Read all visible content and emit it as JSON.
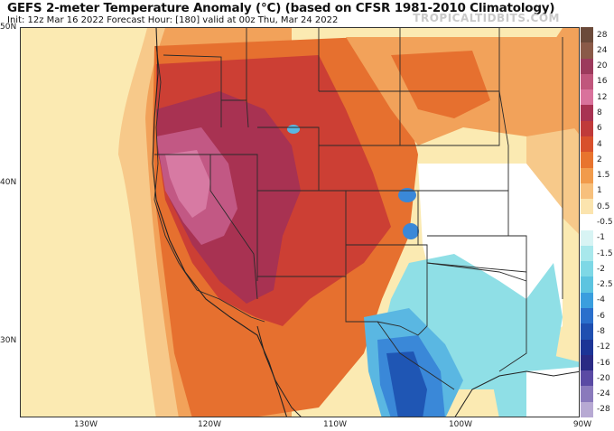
{
  "header": {
    "title": "GEFS 2-meter Temperature Anomaly (°C) (based on CFSR 1981-2010 Climatology)",
    "subtitle": "Init: 12z Mar 16 2022   Forecast Hour: [180]   valid at 00z Thu, Mar 24 2022",
    "brand": "TROPICALTIDBITS.COM"
  },
  "axes": {
    "lat_labels": [
      "50N",
      "40N",
      "30N"
    ],
    "lon_labels": [
      "130W",
      "120W",
      "110W",
      "100W",
      "90W"
    ]
  },
  "colorbar": {
    "labels": [
      "28",
      "24",
      "20",
      "16",
      "12",
      "8",
      "6",
      "4",
      "2",
      "1.5",
      "1",
      "0.5",
      "-0.5",
      "-1",
      "-1.5",
      "-2",
      "-2.5",
      "-4",
      "-6",
      "-8",
      "-12",
      "-16",
      "-20",
      "-24",
      "-28"
    ],
    "colors": [
      "#6b4a3a",
      "#8a5a48",
      "#9c3a5c",
      "#c0567c",
      "#d9729c",
      "#a83252",
      "#c03a3a",
      "#d8502c",
      "#e8742e",
      "#f19b4b",
      "#f7c07c",
      "#fbe4ae",
      "#ffffff",
      "#d8f4f4",
      "#a8e8ec",
      "#7ed8e6",
      "#5cc4e0",
      "#3a9ede",
      "#2a6fcc",
      "#1f4fb0",
      "#1c3496",
      "#2a2a84",
      "#5a4aa4",
      "#8a7abc",
      "#b7a9d3"
    ]
  },
  "map": {
    "colors": {
      "pale_yellow": "#fbeab2",
      "light_orange": "#f7c98a",
      "orange": "#f2a25a",
      "deep_orange": "#e6702f",
      "red": "#cc3f34",
      "maroon": "#a83252",
      "pink": "#c25884",
      "light_pink": "#d77aa3",
      "cyan": "#8fdfe6",
      "light_blue": "#5ab7e2",
      "blue": "#3a88d8",
      "dark_blue": "#1f56b4",
      "neutral": "#ffffff"
    }
  }
}
